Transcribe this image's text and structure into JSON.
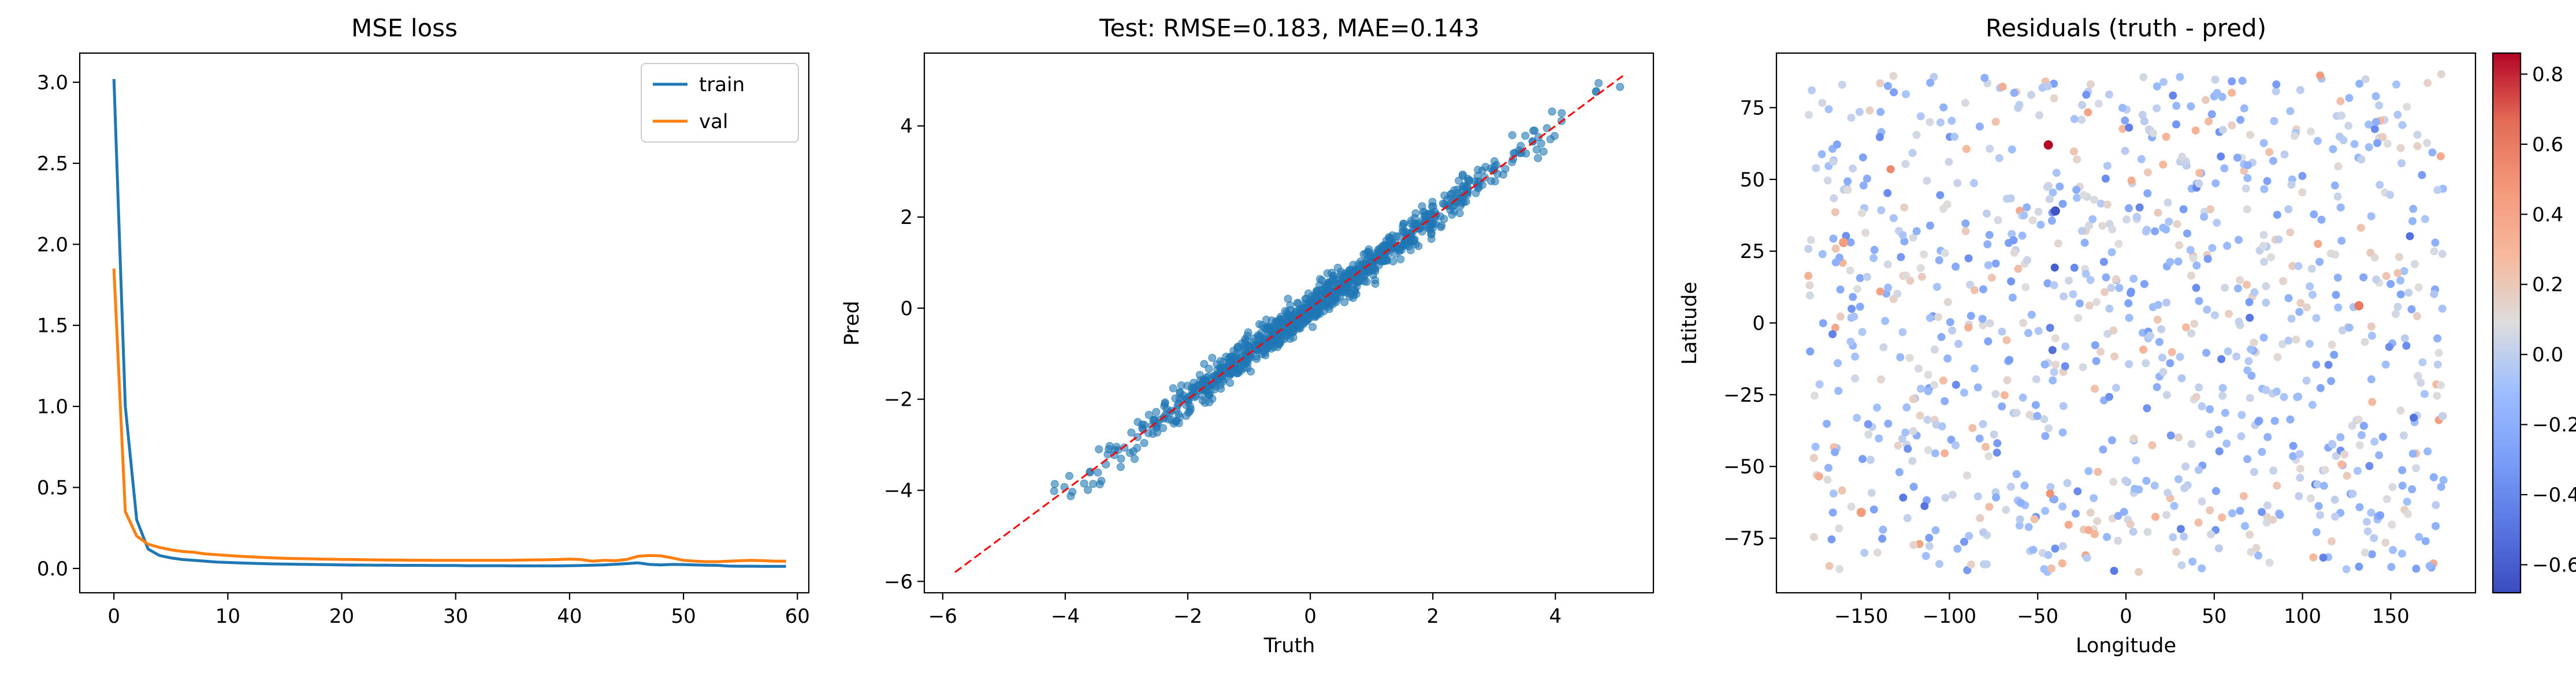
{
  "chart_data": [
    {
      "type": "line",
      "title": "MSE loss",
      "xlabel": "",
      "ylabel": "",
      "xlim": [
        -3,
        61
      ],
      "ylim": [
        -0.15,
        3.18
      ],
      "xticks": [
        0,
        10,
        20,
        30,
        40,
        50,
        60
      ],
      "yticks": [
        0.0,
        0.5,
        1.0,
        1.5,
        2.0,
        2.5,
        3.0
      ],
      "ytick_labels": [
        "0.0",
        "0.5",
        "1.0",
        "1.5",
        "2.0",
        "2.5",
        "3.0"
      ],
      "legend": "top-right",
      "series": [
        {
          "name": "train",
          "color": "#1f77b4",
          "x": [
            0,
            1,
            2,
            3,
            4,
            5,
            6,
            7,
            8,
            9,
            10,
            11,
            12,
            13,
            14,
            15,
            16,
            17,
            18,
            19,
            20,
            21,
            22,
            23,
            24,
            25,
            26,
            27,
            28,
            29,
            30,
            31,
            32,
            33,
            34,
            35,
            36,
            37,
            38,
            39,
            40,
            41,
            42,
            43,
            44,
            45,
            46,
            47,
            48,
            49,
            50,
            51,
            52,
            53,
            54,
            55,
            56,
            57,
            58,
            59
          ],
          "values": [
            3.02,
            1.0,
            0.3,
            0.12,
            0.08,
            0.065,
            0.055,
            0.05,
            0.045,
            0.04,
            0.037,
            0.034,
            0.032,
            0.03,
            0.028,
            0.027,
            0.026,
            0.025,
            0.024,
            0.023,
            0.022,
            0.021,
            0.021,
            0.02,
            0.02,
            0.019,
            0.019,
            0.019,
            0.018,
            0.018,
            0.018,
            0.017,
            0.017,
            0.017,
            0.017,
            0.016,
            0.016,
            0.016,
            0.016,
            0.016,
            0.017,
            0.018,
            0.02,
            0.022,
            0.026,
            0.03,
            0.035,
            0.025,
            0.022,
            0.025,
            0.024,
            0.022,
            0.02,
            0.019,
            0.015,
            0.014,
            0.014,
            0.013,
            0.013,
            0.013
          ]
        },
        {
          "name": "val",
          "color": "#ff7f0e",
          "x": [
            0,
            1,
            2,
            3,
            4,
            5,
            6,
            7,
            8,
            9,
            10,
            11,
            12,
            13,
            14,
            15,
            16,
            17,
            18,
            19,
            20,
            21,
            22,
            23,
            24,
            25,
            26,
            27,
            28,
            29,
            30,
            31,
            32,
            33,
            34,
            35,
            36,
            37,
            38,
            39,
            40,
            41,
            42,
            43,
            44,
            45,
            46,
            47,
            48,
            49,
            50,
            51,
            52,
            53,
            54,
            55,
            56,
            57,
            58,
            59
          ],
          "values": [
            1.85,
            0.35,
            0.2,
            0.15,
            0.13,
            0.115,
            0.105,
            0.1,
            0.09,
            0.085,
            0.08,
            0.075,
            0.072,
            0.068,
            0.065,
            0.063,
            0.061,
            0.06,
            0.058,
            0.057,
            0.056,
            0.055,
            0.054,
            0.053,
            0.052,
            0.052,
            0.051,
            0.051,
            0.05,
            0.05,
            0.05,
            0.05,
            0.05,
            0.05,
            0.05,
            0.051,
            0.052,
            0.053,
            0.054,
            0.055,
            0.058,
            0.055,
            0.045,
            0.05,
            0.048,
            0.055,
            0.075,
            0.08,
            0.078,
            0.065,
            0.05,
            0.045,
            0.042,
            0.042,
            0.045,
            0.048,
            0.05,
            0.048,
            0.045,
            0.045
          ]
        }
      ]
    },
    {
      "type": "scatter",
      "title": "Test: RMSE=0.183, MAE=0.143",
      "xlabel": "Truth",
      "ylabel": "Pred",
      "xlim": [
        -6.3,
        5.6
      ],
      "ylim": [
        -6.25,
        5.6
      ],
      "xticks": [
        -6,
        -4,
        -2,
        0,
        2,
        4
      ],
      "yticks": [
        -6,
        -4,
        -2,
        0,
        2,
        4
      ],
      "xtick_labels": [
        "−6",
        "−4",
        "−2",
        "0",
        "2",
        "4"
      ],
      "ytick_labels": [
        "−6",
        "−4",
        "−2",
        "0",
        "2",
        "4"
      ],
      "point_color": "#1f77b4",
      "identity_line": {
        "from": [
          -5.8,
          -5.8
        ],
        "to": [
          5.1,
          5.1
        ],
        "color": "#ff0000",
        "style": "dashed"
      },
      "n_points": 1000,
      "truth_range": [
        -5.7,
        5.1
      ],
      "noise_sd": 0.183
    },
    {
      "type": "scatter",
      "title": "Residuals (truth - pred)",
      "xlabel": "Longitude",
      "ylabel": "Latitude",
      "xlim": [
        -198,
        198
      ],
      "ylim": [
        -94,
        94
      ],
      "xticks": [
        -150,
        -100,
        -50,
        0,
        50,
        100,
        150
      ],
      "yticks": [
        -75,
        -50,
        -25,
        0,
        25,
        50,
        75
      ],
      "xtick_labels": [
        "−150",
        "−100",
        "−50",
        "0",
        "50",
        "100",
        "150"
      ],
      "ytick_labels": [
        "−75",
        "−50",
        "−25",
        "0",
        "25",
        "50",
        "75"
      ],
      "colormap": "coolwarm",
      "color_range": [
        -0.68,
        0.86
      ],
      "colorbar_ticks": [
        -0.6,
        -0.4,
        -0.2,
        0.0,
        0.2,
        0.4,
        0.6,
        0.8
      ],
      "colorbar_tick_labels": [
        "−0.6",
        "−0.4",
        "−0.2",
        "0.0",
        "0.2",
        "0.4",
        "0.6",
        "0.8"
      ],
      "n_points": 1000,
      "lon_range": [
        -180,
        180
      ],
      "lat_range": [
        -87,
        87
      ],
      "residual_sd": 0.18,
      "highlights": [
        {
          "lon": -44,
          "lat": 62,
          "value": 0.86
        },
        {
          "lon": 132,
          "lat": 6,
          "value": 0.6
        },
        {
          "lon": -150,
          "lat": -66,
          "value": 0.45
        },
        {
          "lon": -40,
          "lat": 39,
          "value": -0.65
        },
        {
          "lon": -160,
          "lat": 28,
          "value": 0.45
        }
      ]
    }
  ]
}
